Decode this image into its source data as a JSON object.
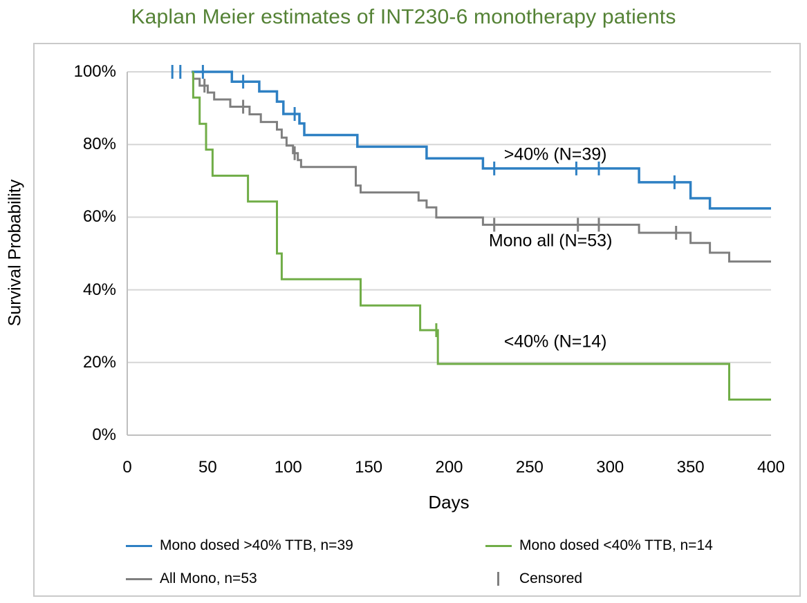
{
  "title": "Kaplan Meier estimates of INT230-6 monotherapy patients",
  "colors": {
    "title_green": "#548235",
    "gridline": "#D6D6D6",
    "axis_line": "#BFBFBF",
    "blue": "#2E80C3",
    "gray": "#7F7F7F",
    "green": "#70AD47",
    "text": "#000000"
  },
  "chart_data": {
    "type": "line",
    "subtype": "kaplan-meier-step",
    "title": "Kaplan Meier estimates of INT230-6 monotherapy patients",
    "xlabel": "Days",
    "ylabel": "Survival Probability",
    "xlim": [
      0,
      400
    ],
    "ylim": [
      0,
      100
    ],
    "grid": "horizontal",
    "legend_position": "bottom",
    "x_axis": {
      "ticks": [
        {
          "day": 0,
          "label": "0"
        },
        {
          "day": 50,
          "label": "50"
        },
        {
          "day": 100,
          "label": "100"
        },
        {
          "day": 150,
          "label": "150"
        },
        {
          "day": 200,
          "label": "200"
        },
        {
          "day": 250,
          "label": "250"
        },
        {
          "day": 300,
          "label": "300"
        },
        {
          "day": 350,
          "label": "350"
        },
        {
          "day": 400,
          "label": "400"
        }
      ]
    },
    "y_axis": {
      "ticks": [
        {
          "value": 100,
          "label": "100%"
        },
        {
          "value": 80,
          "label": "80%"
        },
        {
          "value": 60,
          "label": "60%"
        },
        {
          "value": 40,
          "label": "40%"
        },
        {
          "value": 20,
          "label": "20%"
        },
        {
          "value": 0,
          "label": "0%"
        }
      ]
    },
    "series": [
      {
        "id": "mono-gt40",
        "name": "Mono dosed >40% TTB, n=39",
        "color": "#2E80C3",
        "width": 3.5,
        "visible_start_day": 40,
        "end_day": 400,
        "steps": [
          [
            65,
            97.3
          ],
          [
            82,
            94.6
          ],
          [
            93,
            91.8
          ],
          [
            97,
            88.4
          ],
          [
            107,
            85.8
          ],
          [
            110,
            82.6
          ],
          [
            143,
            79.4
          ],
          [
            186,
            76.2
          ],
          [
            221,
            73.4
          ],
          [
            318,
            69.6
          ],
          [
            350,
            65.2
          ],
          [
            362,
            62.4
          ]
        ],
        "censor_marks": [
          [
            28,
            100
          ],
          [
            33,
            100
          ],
          [
            47,
            100
          ],
          [
            72,
            97.3
          ],
          [
            104,
            88.4
          ],
          [
            228,
            73.4
          ],
          [
            279,
            73.4
          ],
          [
            293,
            73.4
          ],
          [
            340,
            69.6
          ]
        ]
      },
      {
        "id": "all-mono",
        "name": "All Mono, n=53",
        "color": "#7F7F7F",
        "width": 3,
        "visible_start_day": 41,
        "end_day": 400,
        "steps": [
          [
            41,
            98.1
          ],
          [
            45,
            96.2
          ],
          [
            50,
            94.3
          ],
          [
            54,
            92.4
          ],
          [
            64,
            90.4
          ],
          [
            76,
            88.3
          ],
          [
            83,
            86.2
          ],
          [
            93,
            84.1
          ],
          [
            96,
            81.9
          ],
          [
            99,
            79.7
          ],
          [
            103,
            77.6
          ],
          [
            106,
            75.7
          ],
          [
            108,
            73.8
          ],
          [
            142,
            68.7
          ],
          [
            145,
            66.8
          ],
          [
            181,
            64.6
          ],
          [
            186,
            62.7
          ],
          [
            192,
            59.9
          ],
          [
            221,
            57.9
          ],
          [
            318,
            55.7
          ],
          [
            350,
            52.9
          ],
          [
            362,
            50.2
          ],
          [
            374,
            47.8
          ]
        ],
        "censor_marks": [
          [
            48,
            96.2
          ],
          [
            72,
            90.4
          ],
          [
            104,
            77.6
          ],
          [
            228,
            57.9
          ],
          [
            280,
            57.9
          ],
          [
            293,
            57.9
          ],
          [
            341,
            55.7
          ]
        ]
      },
      {
        "id": "mono-lt40",
        "name": "Mono dosed <40% TTB, n=14",
        "color": "#70AD47",
        "width": 3,
        "visible_start_day": 41,
        "end_day": 400,
        "steps": [
          [
            41,
            92.9
          ],
          [
            45,
            85.7
          ],
          [
            49,
            78.6
          ],
          [
            53,
            71.4
          ],
          [
            75,
            64.3
          ],
          [
            93,
            50.0
          ],
          [
            96,
            42.9
          ],
          [
            145,
            35.7
          ],
          [
            182,
            28.9
          ],
          [
            193,
            19.6
          ],
          [
            374,
            9.8
          ]
        ],
        "censor_marks": [
          [
            192,
            28.9
          ]
        ]
      }
    ],
    "annotations": [
      {
        "id": "gt40",
        "text": ">40% (N=39)",
        "day": 266,
        "surv": 77.2
      },
      {
        "id": "mono-all",
        "text": "Mono all (N=53)",
        "day": 263,
        "surv": 53.4
      },
      {
        "id": "lt40",
        "text": "<40% (N=14)",
        "day": 266,
        "surv": 25.7
      }
    ],
    "legend": {
      "items": [
        {
          "type": "line",
          "color": "#2E80C3",
          "label": "Mono dosed >40% TTB, n=39",
          "name": "legend-mono-gt40"
        },
        {
          "type": "line",
          "color": "#70AD47",
          "label": "Mono dosed <40% TTB, n=14",
          "name": "legend-mono-lt40"
        },
        {
          "type": "line",
          "color": "#7F7F7F",
          "label": "All Mono, n=53",
          "name": "legend-all-mono"
        },
        {
          "type": "censor",
          "color": "#7F7F7F",
          "label": "Censored",
          "name": "legend-censored"
        }
      ]
    }
  }
}
